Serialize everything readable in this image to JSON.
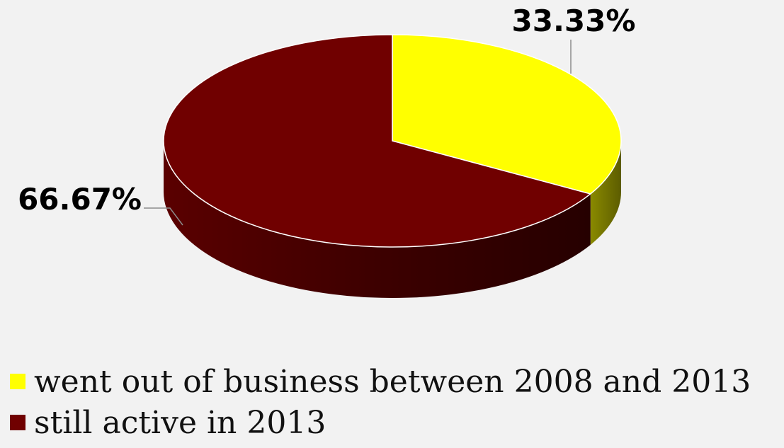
{
  "chart_data": {
    "type": "pie",
    "style": "3d",
    "title": "",
    "categories": [
      "went out of business between 2008 and 2013",
      "still active in 2013"
    ],
    "values": [
      33.33,
      66.67
    ],
    "labels": [
      "33.33%",
      "66.67%"
    ],
    "colors": [
      "#ffff00",
      "#700000"
    ],
    "side_colors": [
      "#7a7a00",
      "#3a0000"
    ],
    "legend_position": "bottom-left"
  }
}
